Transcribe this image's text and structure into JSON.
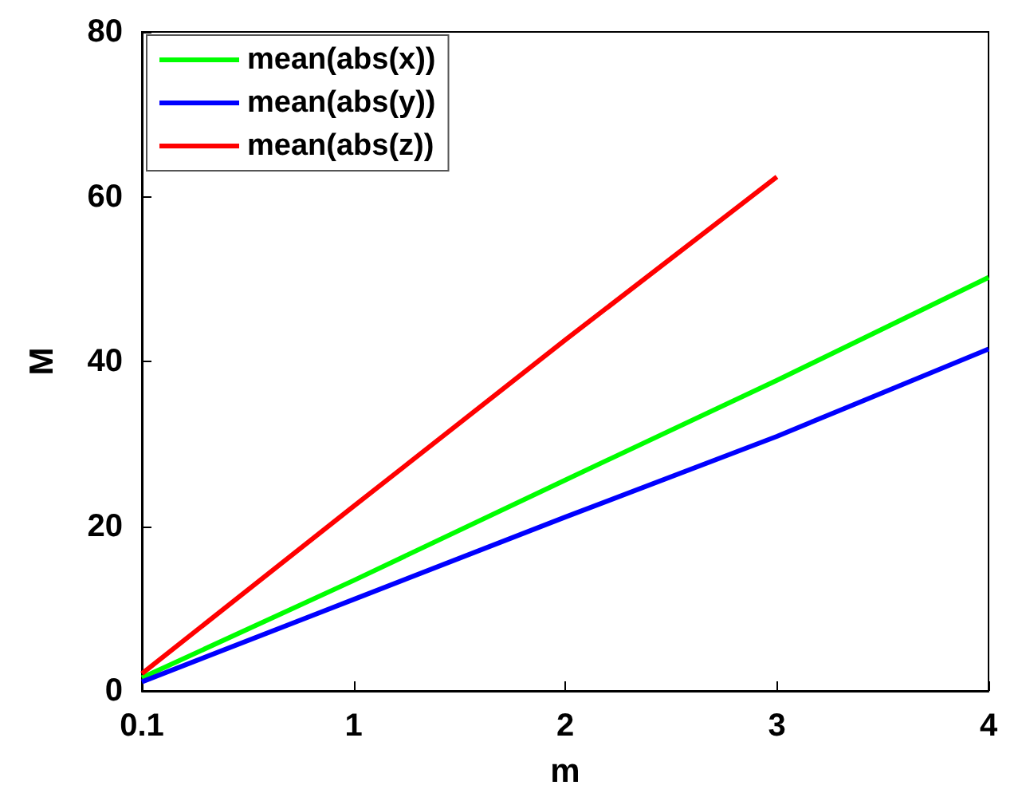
{
  "chart_data": {
    "type": "line",
    "xlabel": "m",
    "ylabel": "M",
    "categories": [
      "0.1",
      "1",
      "2",
      "3",
      "4"
    ],
    "series": [
      {
        "name": "mean(abs(x))",
        "color": "#00ff00",
        "values": [
          1.6,
          13.4,
          25.6,
          37.7,
          50.2
        ]
      },
      {
        "name": "mean(abs(y))",
        "color": "#0000ff",
        "values": [
          1.1,
          11.1,
          21.1,
          30.9,
          41.5
        ]
      },
      {
        "name": "mean(abs(z))",
        "color": "#ff0000",
        "values": [
          2.1,
          22.4,
          42.6,
          62.4,
          null
        ]
      }
    ],
    "ylim": [
      0,
      80
    ],
    "yticks": [
      0,
      20,
      40,
      60,
      80
    ],
    "grid": false,
    "legend": "top left",
    "marker": "none",
    "line_style": "solid"
  }
}
